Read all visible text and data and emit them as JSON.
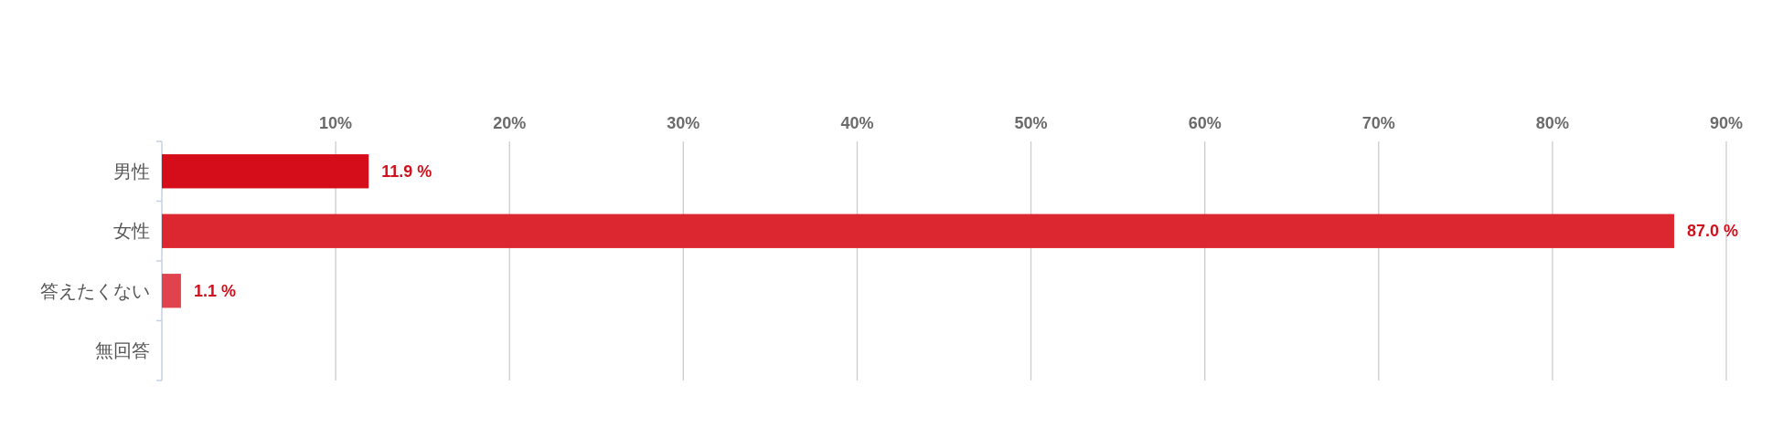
{
  "chart_data": {
    "type": "bar",
    "orientation": "horizontal",
    "categories": [
      "男性",
      "女性",
      "答えたくない",
      "無回答"
    ],
    "values": [
      11.9,
      87.0,
      1.1,
      0
    ],
    "colors": [
      "#d50c1a",
      "#dc2630",
      "#e0434d",
      null
    ],
    "value_labels": [
      "11.9 %",
      "87.0 %",
      "1.1 %",
      null
    ],
    "xlim": [
      0,
      90
    ],
    "xticks": [
      {
        "value": 10,
        "label": "10%"
      },
      {
        "value": 20,
        "label": "20%"
      },
      {
        "value": 30,
        "label": "30%"
      },
      {
        "value": 40,
        "label": "40%"
      },
      {
        "value": 50,
        "label": "50%"
      },
      {
        "value": 60,
        "label": "60%"
      },
      {
        "value": 70,
        "label": "70%"
      },
      {
        "value": 80,
        "label": "80%"
      },
      {
        "value": 90,
        "label": "90%"
      }
    ],
    "grid": "x"
  }
}
